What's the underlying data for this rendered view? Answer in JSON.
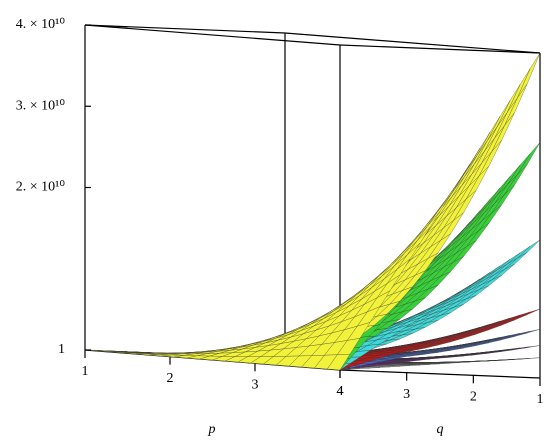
{
  "chart_data": {
    "type": "surface3d",
    "xlabel": "p",
    "ylabel": "q",
    "xlim": [
      1,
      4
    ],
    "xticks": [
      1,
      2,
      3,
      4
    ],
    "ylim": [
      1,
      4
    ],
    "yticks": [
      1,
      2,
      3,
      4
    ],
    "zlim": [
      1,
      40000000000
    ],
    "zticks": [
      1,
      {
        "value": 20000000000,
        "label": "2. × 10¹⁰"
      },
      {
        "value": 30000000000,
        "label": "3. × 10¹⁰"
      },
      {
        "value": 40000000000,
        "label": "4. × 10¹⁰"
      }
    ],
    "series": [
      {
        "color": "#a8a8a8",
        "value": 2500000000
      },
      {
        "color": "#6a2a80",
        "value": 4000000000
      },
      {
        "color": "#4a6cc8",
        "value": 6000000000
      },
      {
        "color": "#c01818",
        "value": 8500000000
      },
      {
        "color": "#40d8d8",
        "value": 17000000000
      },
      {
        "color": "#38d038",
        "value": 29000000000
      },
      {
        "color": "#f2f23a",
        "value": 40000000000
      }
    ]
  }
}
